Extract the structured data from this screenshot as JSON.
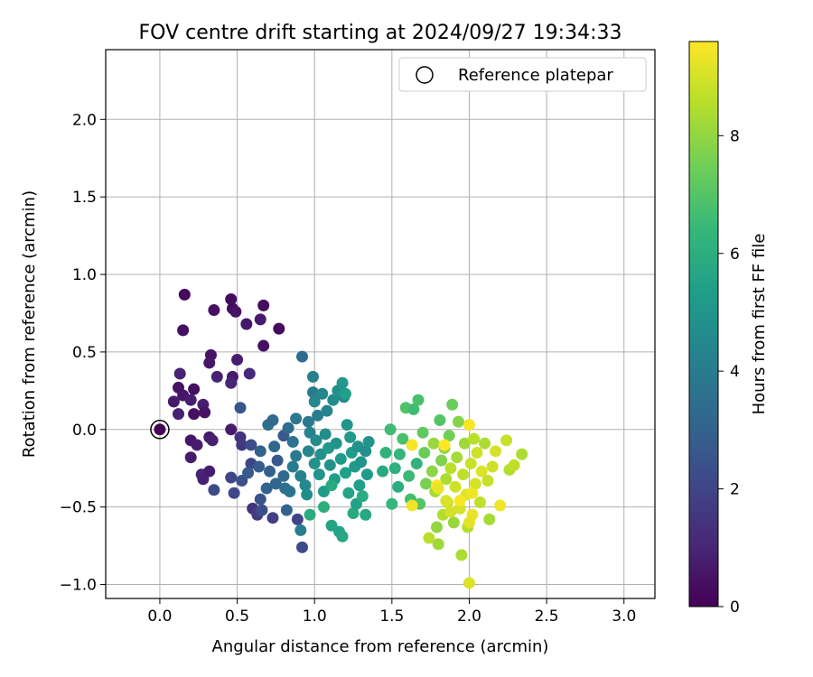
{
  "chart_data": {
    "type": "scatter",
    "title": "FOV centre drift starting at 2024/09/27 19:34:33",
    "xlabel": "Angular distance from reference (arcmin)",
    "ylabel": "Rotation from reference (arcmin)",
    "xlim": [
      -0.35,
      3.2
    ],
    "ylim": [
      -1.09,
      2.45
    ],
    "xticks": [
      "0.0",
      "0.5",
      "1.0",
      "1.5",
      "2.0",
      "2.5",
      "3.0"
    ],
    "yticks": [
      "−1.0",
      "−0.5",
      "0.0",
      "0.5",
      "1.0",
      "1.5",
      "2.0"
    ],
    "grid": true,
    "legend": {
      "position": "top-right",
      "entries": [
        "Reference platepar"
      ]
    },
    "reference_point": {
      "x": 0.0,
      "y": 0.0
    },
    "colorbar": {
      "label": "Hours from first FF file",
      "range": [
        0,
        9.6
      ],
      "ticks": [
        "0",
        "2",
        "4",
        "6",
        "8"
      ],
      "colormap": "viridis",
      "colors": [
        "#440154",
        "#482878",
        "#3e4989",
        "#31688e",
        "#26828e",
        "#1f9e89",
        "#35b779",
        "#6ece58",
        "#b5de2b",
        "#fde725"
      ]
    },
    "points": [
      {
        "x": 0.16,
        "y": 0.87,
        "h": 0.2
      },
      {
        "x": 0.46,
        "y": 0.84,
        "h": 0.3
      },
      {
        "x": 0.67,
        "y": 0.8,
        "h": 0.3
      },
      {
        "x": 0.35,
        "y": 0.77,
        "h": 0.4
      },
      {
        "x": 0.47,
        "y": 0.78,
        "h": 0.3
      },
      {
        "x": 0.49,
        "y": 0.76,
        "h": 0.5
      },
      {
        "x": 0.56,
        "y": 0.68,
        "h": 0.6
      },
      {
        "x": 0.65,
        "y": 0.71,
        "h": 0.7
      },
      {
        "x": 0.15,
        "y": 0.64,
        "h": 0.4
      },
      {
        "x": 0.77,
        "y": 0.65,
        "h": 0.3
      },
      {
        "x": 0.67,
        "y": 0.54,
        "h": 0.4
      },
      {
        "x": 0.33,
        "y": 0.48,
        "h": 0.5
      },
      {
        "x": 0.32,
        "y": 0.43,
        "h": 0.6
      },
      {
        "x": 0.5,
        "y": 0.45,
        "h": 0.8
      },
      {
        "x": 0.13,
        "y": 0.36,
        "h": 0.9
      },
      {
        "x": 0.47,
        "y": 0.34,
        "h": 0.7
      },
      {
        "x": 0.37,
        "y": 0.34,
        "h": 0.9
      },
      {
        "x": 0.46,
        "y": 0.3,
        "h": 1.0
      },
      {
        "x": 0.58,
        "y": 0.36,
        "h": 1.1
      },
      {
        "x": 0.12,
        "y": 0.27,
        "h": 0.5
      },
      {
        "x": 0.15,
        "y": 0.22,
        "h": 0.6
      },
      {
        "x": 0.09,
        "y": 0.18,
        "h": 0.7
      },
      {
        "x": 0.22,
        "y": 0.26,
        "h": 0.4
      },
      {
        "x": 0.2,
        "y": 0.19,
        "h": 0.8
      },
      {
        "x": 0.28,
        "y": 0.16,
        "h": 0.8
      },
      {
        "x": 0.29,
        "y": 0.11,
        "h": 0.5
      },
      {
        "x": 0.22,
        "y": 0.1,
        "h": 0.4
      },
      {
        "x": 0.12,
        "y": 0.1,
        "h": 0.9
      },
      {
        "x": 0.2,
        "y": -0.07,
        "h": 0.6
      },
      {
        "x": 0.24,
        "y": -0.1,
        "h": 0.8
      },
      {
        "x": 0.32,
        "y": -0.05,
        "h": 0.7
      },
      {
        "x": 0.34,
        "y": -0.07,
        "h": 0.9
      },
      {
        "x": 0.2,
        "y": -0.18,
        "h": 0.7
      },
      {
        "x": 0.27,
        "y": -0.29,
        "h": 1.0
      },
      {
        "x": 0.32,
        "y": -0.27,
        "h": 0.8
      },
      {
        "x": 0.28,
        "y": -0.32,
        "h": 0.9
      },
      {
        "x": 0.46,
        "y": 0.0,
        "h": 0.7
      },
      {
        "x": 0.52,
        "y": -0.05,
        "h": 1.4
      },
      {
        "x": 0.53,
        "y": -0.1,
        "h": 1.6
      },
      {
        "x": 0.52,
        "y": 0.14,
        "h": 2.6
      },
      {
        "x": 0.35,
        "y": -0.39,
        "h": 2.2
      },
      {
        "x": 0.46,
        "y": -0.31,
        "h": 2.0
      },
      {
        "x": 0.48,
        "y": -0.41,
        "h": 2.1
      },
      {
        "x": 0.53,
        "y": -0.33,
        "h": 2.4
      },
      {
        "x": 0.59,
        "y": -0.22,
        "h": 2.0
      },
      {
        "x": 0.59,
        "y": -0.1,
        "h": 2.3
      },
      {
        "x": 0.57,
        "y": -0.28,
        "h": 2.7
      },
      {
        "x": 0.6,
        "y": -0.51,
        "h": 1.4
      },
      {
        "x": 0.63,
        "y": -0.55,
        "h": 1.6
      },
      {
        "x": 0.64,
        "y": -0.53,
        "h": 1.8
      },
      {
        "x": 0.65,
        "y": -0.45,
        "h": 2.4
      },
      {
        "x": 0.66,
        "y": -0.52,
        "h": 2.3
      },
      {
        "x": 0.64,
        "y": -0.24,
        "h": 2.8
      },
      {
        "x": 0.65,
        "y": -0.14,
        "h": 3.0
      },
      {
        "x": 0.69,
        "y": -0.38,
        "h": 3.0
      },
      {
        "x": 0.71,
        "y": -0.27,
        "h": 2.9
      },
      {
        "x": 0.7,
        "y": 0.03,
        "h": 3.5
      },
      {
        "x": 0.73,
        "y": 0.06,
        "h": 3.3
      },
      {
        "x": 0.74,
        "y": -0.11,
        "h": 3.2
      },
      {
        "x": 0.76,
        "y": -0.2,
        "h": 2.6
      },
      {
        "x": 0.75,
        "y": -0.35,
        "h": 3.1
      },
      {
        "x": 0.73,
        "y": -0.57,
        "h": 1.8
      },
      {
        "x": 0.8,
        "y": -0.04,
        "h": 2.7
      },
      {
        "x": 0.8,
        "y": -0.3,
        "h": 3.3
      },
      {
        "x": 0.81,
        "y": -0.38,
        "h": 3.5
      },
      {
        "x": 0.82,
        "y": -0.52,
        "h": 3.1
      },
      {
        "x": 0.84,
        "y": -0.4,
        "h": 3.7
      },
      {
        "x": 0.86,
        "y": -0.24,
        "h": 4.0
      },
      {
        "x": 0.86,
        "y": -0.08,
        "h": 3.6
      },
      {
        "x": 0.83,
        "y": 0.01,
        "h": 3.4
      },
      {
        "x": 0.88,
        "y": 0.07,
        "h": 3.8
      },
      {
        "x": 0.88,
        "y": -0.17,
        "h": 3.9
      },
      {
        "x": 0.89,
        "y": -0.58,
        "h": 2.0
      },
      {
        "x": 0.91,
        "y": -0.65,
        "h": 4.1
      },
      {
        "x": 0.92,
        "y": -0.76,
        "h": 2.2
      },
      {
        "x": 0.92,
        "y": 0.47,
        "h": 3.4
      },
      {
        "x": 0.91,
        "y": -0.3,
        "h": 4.2
      },
      {
        "x": 0.94,
        "y": -0.36,
        "h": 4.5
      },
      {
        "x": 0.95,
        "y": -0.42,
        "h": 4.7
      },
      {
        "x": 0.96,
        "y": -0.14,
        "h": 4.4
      },
      {
        "x": 0.96,
        "y": 0.05,
        "h": 3.9
      },
      {
        "x": 0.97,
        "y": -0.02,
        "h": 4.3
      },
      {
        "x": 0.99,
        "y": 0.34,
        "h": 4.2
      },
      {
        "x": 0.99,
        "y": 0.24,
        "h": 4.0
      },
      {
        "x": 1.0,
        "y": 0.18,
        "h": 4.5
      },
      {
        "x": 1.0,
        "y": -0.22,
        "h": 4.9
      },
      {
        "x": 1.01,
        "y": -0.07,
        "h": 4.6
      },
      {
        "x": 1.02,
        "y": 0.09,
        "h": 4.1
      },
      {
        "x": 1.03,
        "y": -0.29,
        "h": 5.0
      },
      {
        "x": 1.04,
        "y": -0.16,
        "h": 4.8
      },
      {
        "x": 1.05,
        "y": 0.23,
        "h": 4.4
      },
      {
        "x": 1.06,
        "y": -0.4,
        "h": 5.2
      },
      {
        "x": 1.07,
        "y": -0.03,
        "h": 4.7
      },
      {
        "x": 1.08,
        "y": 0.12,
        "h": 4.3
      },
      {
        "x": 1.09,
        "y": -0.12,
        "h": 5.1
      },
      {
        "x": 1.1,
        "y": -0.23,
        "h": 4.9
      },
      {
        "x": 1.11,
        "y": -0.62,
        "h": 5.6
      },
      {
        "x": 1.12,
        "y": 0.19,
        "h": 4.6
      },
      {
        "x": 1.13,
        "y": -0.32,
        "h": 5.3
      },
      {
        "x": 1.14,
        "y": -0.09,
        "h": 5.0
      },
      {
        "x": 1.15,
        "y": 0.25,
        "h": 4.8
      },
      {
        "x": 1.16,
        "y": -0.66,
        "h": 5.5
      },
      {
        "x": 1.17,
        "y": -0.19,
        "h": 5.2
      },
      {
        "x": 1.18,
        "y": -0.69,
        "h": 5.7
      },
      {
        "x": 1.19,
        "y": 0.21,
        "h": 4.5
      },
      {
        "x": 1.2,
        "y": -0.28,
        "h": 5.4
      },
      {
        "x": 1.21,
        "y": 0.03,
        "h": 5.0
      },
      {
        "x": 1.22,
        "y": -0.41,
        "h": 5.6
      },
      {
        "x": 1.23,
        "y": -0.05,
        "h": 5.1
      },
      {
        "x": 1.24,
        "y": -0.15,
        "h": 5.3
      },
      {
        "x": 1.25,
        "y": -0.54,
        "h": 5.8
      },
      {
        "x": 1.26,
        "y": -0.24,
        "h": 5.2
      },
      {
        "x": 1.27,
        "y": -0.48,
        "h": 5.5
      },
      {
        "x": 1.28,
        "y": -0.11,
        "h": 4.9
      },
      {
        "x": 1.29,
        "y": -0.36,
        "h": 5.4
      },
      {
        "x": 1.3,
        "y": -0.21,
        "h": 5.0
      },
      {
        "x": 1.31,
        "y": -0.43,
        "h": 5.9
      },
      {
        "x": 1.33,
        "y": -0.55,
        "h": 5.7
      },
      {
        "x": 1.33,
        "y": -0.14,
        "h": 4.8
      },
      {
        "x": 1.34,
        "y": -0.29,
        "h": 5.2
      },
      {
        "x": 1.35,
        "y": -0.08,
        "h": 5.0
      },
      {
        "x": 1.18,
        "y": 0.3,
        "h": 5.1
      },
      {
        "x": 1.2,
        "y": 0.23,
        "h": 5.4
      },
      {
        "x": 1.11,
        "y": -0.36,
        "h": 5.8
      },
      {
        "x": 1.06,
        "y": -0.5,
        "h": 6.0
      },
      {
        "x": 0.97,
        "y": -0.55,
        "h": 5.9
      },
      {
        "x": 1.44,
        "y": -0.27,
        "h": 5.8
      },
      {
        "x": 1.46,
        "y": -0.15,
        "h": 6.2
      },
      {
        "x": 1.49,
        "y": 0.0,
        "h": 6.6
      },
      {
        "x": 1.5,
        "y": -0.48,
        "h": 6.4
      },
      {
        "x": 1.52,
        "y": -0.25,
        "h": 6.1
      },
      {
        "x": 1.54,
        "y": -0.37,
        "h": 6.0
      },
      {
        "x": 1.55,
        "y": -0.16,
        "h": 6.3
      },
      {
        "x": 1.57,
        "y": -0.06,
        "h": 6.8
      },
      {
        "x": 1.59,
        "y": 0.14,
        "h": 6.9
      },
      {
        "x": 1.61,
        "y": -0.3,
        "h": 6.5
      },
      {
        "x": 1.62,
        "y": -0.45,
        "h": 6.7
      },
      {
        "x": 1.64,
        "y": 0.13,
        "h": 6.6
      },
      {
        "x": 1.66,
        "y": -0.22,
        "h": 6.2
      },
      {
        "x": 1.67,
        "y": 0.19,
        "h": 6.8
      },
      {
        "x": 1.68,
        "y": -0.48,
        "h": 7.0
      },
      {
        "x": 1.7,
        "y": -0.02,
        "h": 7.2
      },
      {
        "x": 1.71,
        "y": -0.15,
        "h": 7.4
      },
      {
        "x": 1.72,
        "y": -0.35,
        "h": 7.6
      },
      {
        "x": 1.74,
        "y": -0.7,
        "h": 8.6
      },
      {
        "x": 1.76,
        "y": -0.27,
        "h": 7.9
      },
      {
        "x": 1.77,
        "y": -0.09,
        "h": 8.1
      },
      {
        "x": 1.78,
        "y": -0.4,
        "h": 8.3
      },
      {
        "x": 1.79,
        "y": -0.63,
        "h": 8.0
      },
      {
        "x": 1.8,
        "y": -0.74,
        "h": 8.2
      },
      {
        "x": 1.81,
        "y": 0.06,
        "h": 7.0
      },
      {
        "x": 1.82,
        "y": -0.2,
        "h": 7.7
      },
      {
        "x": 1.83,
        "y": -0.55,
        "h": 8.5
      },
      {
        "x": 1.84,
        "y": -0.12,
        "h": 8.0
      },
      {
        "x": 1.85,
        "y": -0.32,
        "h": 8.4
      },
      {
        "x": 1.86,
        "y": -0.47,
        "h": 8.8
      },
      {
        "x": 1.87,
        "y": -0.04,
        "h": 7.5
      },
      {
        "x": 1.88,
        "y": -0.25,
        "h": 8.6
      },
      {
        "x": 1.89,
        "y": 0.16,
        "h": 7.4
      },
      {
        "x": 1.9,
        "y": -0.6,
        "h": 8.1
      },
      {
        "x": 1.91,
        "y": -0.37,
        "h": 8.9
      },
      {
        "x": 1.92,
        "y": -0.18,
        "h": 8.3
      },
      {
        "x": 1.93,
        "y": 0.05,
        "h": 7.8
      },
      {
        "x": 1.94,
        "y": -0.51,
        "h": 9.0
      },
      {
        "x": 1.95,
        "y": -0.81,
        "h": 8.4
      },
      {
        "x": 1.96,
        "y": -0.29,
        "h": 8.7
      },
      {
        "x": 1.97,
        "y": -0.09,
        "h": 8.2
      },
      {
        "x": 1.98,
        "y": -0.42,
        "h": 9.2
      },
      {
        "x": 1.99,
        "y": -0.63,
        "h": 8.5
      },
      {
        "x": 2.0,
        "y": -0.99,
        "h": 9.1
      },
      {
        "x": 2.01,
        "y": -0.22,
        "h": 8.8
      },
      {
        "x": 2.02,
        "y": -0.55,
        "h": 9.3
      },
      {
        "x": 2.03,
        "y": -0.06,
        "h": 8.6
      },
      {
        "x": 2.04,
        "y": -0.35,
        "h": 9.0
      },
      {
        "x": 2.05,
        "y": -0.15,
        "h": 8.9
      },
      {
        "x": 2.07,
        "y": -0.47,
        "h": 8.7
      },
      {
        "x": 2.08,
        "y": -0.27,
        "h": 9.1
      },
      {
        "x": 2.1,
        "y": -0.09,
        "h": 8.4
      },
      {
        "x": 2.12,
        "y": -0.33,
        "h": 8.8
      },
      {
        "x": 2.13,
        "y": -0.58,
        "h": 8.3
      },
      {
        "x": 2.15,
        "y": -0.24,
        "h": 8.9
      },
      {
        "x": 2.17,
        "y": -0.14,
        "h": 9.0
      },
      {
        "x": 2.2,
        "y": -0.49,
        "h": 9.4
      },
      {
        "x": 2.24,
        "y": -0.07,
        "h": 8.8
      },
      {
        "x": 2.26,
        "y": -0.26,
        "h": 8.5
      },
      {
        "x": 2.29,
        "y": -0.23,
        "h": 8.7
      },
      {
        "x": 2.34,
        "y": -0.16,
        "h": 8.4
      },
      {
        "x": 1.63,
        "y": -0.1,
        "h": 9.5
      },
      {
        "x": 1.63,
        "y": -0.49,
        "h": 9.4
      },
      {
        "x": 1.84,
        "y": -0.1,
        "h": 9.6
      },
      {
        "x": 2.0,
        "y": 0.03,
        "h": 9.5
      },
      {
        "x": 1.79,
        "y": -0.36,
        "h": 9.6
      },
      {
        "x": 1.94,
        "y": -0.46,
        "h": 9.5
      },
      {
        "x": 2.02,
        "y": -0.41,
        "h": 9.4
      },
      {
        "x": 1.8,
        "y": -0.38,
        "h": 9.3
      },
      {
        "x": 2.0,
        "y": -0.6,
        "h": 9.2
      },
      {
        "x": 1.85,
        "y": -0.46,
        "h": 9.1
      },
      {
        "x": 1.88,
        "y": -0.53,
        "h": 9.0
      }
    ]
  }
}
